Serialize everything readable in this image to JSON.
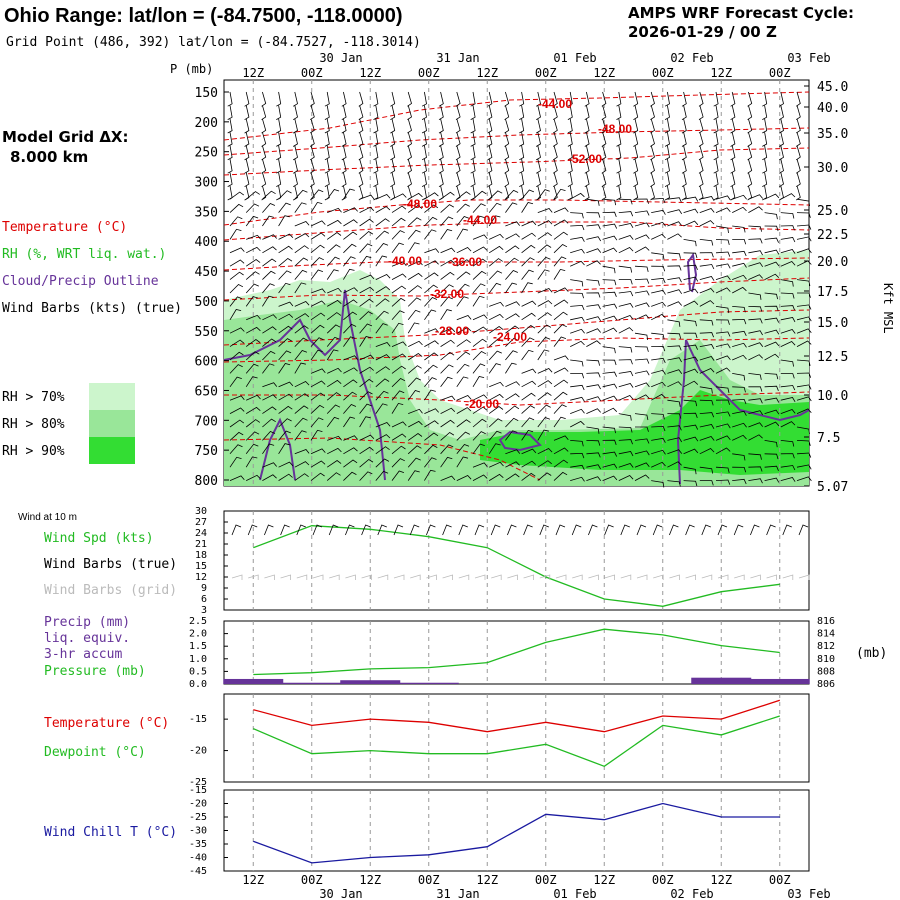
{
  "header": {
    "title": "Ohio Range:  lat/lon = (-84.7500, -118.0000)",
    "subtitle": "Grid Point (486, 392) lat/lon = (-84.7527, -118.3014)",
    "cycle_label": "AMPS WRF Forecast Cycle:",
    "cycle_value": "2026-01-29 / 00  Z"
  },
  "model_grid": {
    "label": "Model Grid ΔX:",
    "value": "8.000 km"
  },
  "left_legend": {
    "temperature": "Temperature (°C)",
    "rh": "RH (%, WRT liq. wat.)",
    "cloud": "Cloud/Precip Outline",
    "wind_barbs": "Wind Barbs (kts) (true)",
    "rh70": "RH > 70%",
    "rh80": "RH > 80%",
    "rh90": "RH > 90%"
  },
  "time_axis": {
    "top_hours": [
      "12Z",
      "00Z",
      "12Z",
      "00Z",
      "12Z",
      "00Z",
      "12Z",
      "00Z",
      "12Z",
      "00Z"
    ],
    "top_dates": [
      "30 Jan",
      "31 Jan",
      "01 Feb",
      "02 Feb",
      "03 Feb"
    ],
    "bottom_hours": [
      "12Z",
      "00Z",
      "12Z",
      "00Z",
      "12Z",
      "00Z",
      "12Z",
      "00Z",
      "12Z",
      "00Z"
    ],
    "bottom_dates": [
      "30 Jan",
      "31 Jan",
      "01 Feb",
      "02 Feb",
      "03 Feb"
    ]
  },
  "colors": {
    "red": "#dd0000",
    "green": "#22bb22",
    "purple": "#663399",
    "blue": "#1a1aa0",
    "rh70": "#ccf5cc",
    "rh80": "#99e699",
    "rh90": "#33dd33",
    "grid": "#999999"
  },
  "chart_data": [
    {
      "type": "heatmap",
      "name": "cross-section",
      "title": "Ohio Range:  lat/lon = (-84.7500, -118.0000)",
      "ylabel": "P (mb)",
      "ylim": [
        800,
        150
      ],
      "y_ticks": [
        "150",
        "200",
        "250",
        "300",
        "350",
        "400",
        "450",
        "500",
        "550",
        "600",
        "650",
        "700",
        "750",
        "800"
      ],
      "right_axis_label": "Kft MSL",
      "right_ticks": [
        "45.0",
        "40.0",
        "35.0",
        "30.0",
        "25.0",
        "22.5",
        "20.0",
        "17.5",
        "15.0",
        "12.5",
        "10.0",
        "7.5",
        "5.07"
      ],
      "temperature_labels": [
        "-44.00",
        "-48.00",
        "-52.00",
        "-48.00",
        "-44.00",
        "-40.00",
        "-36.00",
        "-32.00",
        "-28.00",
        "-24.00",
        "-20.00"
      ]
    },
    {
      "type": "line",
      "name": "wind-10m",
      "panel_label": "Wind at 10 m",
      "legend": [
        "Wind Spd (kts)",
        "Wind Barbs (true)",
        "Wind Barbs (grid)"
      ],
      "y_ticks": [
        "30",
        "27",
        "24",
        "21",
        "18",
        "15",
        "12",
        "9",
        "6",
        "3"
      ],
      "ylim": [
        3,
        30
      ],
      "x_hours": [
        0,
        12,
        24,
        36,
        48,
        60,
        72,
        84,
        96,
        108
      ],
      "series": [
        {
          "name": "Wind Spd (kts)",
          "values": [
            20,
            26,
            25,
            23,
            20,
            12,
            6,
            4,
            8,
            10
          ]
        }
      ]
    },
    {
      "type": "line",
      "name": "precip-pressure",
      "legend": [
        "Precip (mm)",
        "liq. equiv.",
        "3-hr accum",
        "Pressure (mb)"
      ],
      "y_ticks": [
        "2.5",
        "2.0",
        "1.5",
        "1.0",
        "0.5",
        "0.0"
      ],
      "right_ticks": [
        "816",
        "814",
        "812",
        "810",
        "808",
        "806"
      ],
      "right_unit": "(mb)",
      "ylim": [
        0,
        2.5
      ],
      "x_hours": [
        0,
        12,
        24,
        36,
        48,
        60,
        72,
        84,
        96,
        108
      ],
      "series": [
        {
          "name": "Pressure (mb)",
          "values": [
            807.5,
            807.8,
            808.4,
            808.6,
            809.4,
            812.6,
            814.7,
            813.8,
            812.1,
            811.0
          ]
        },
        {
          "name": "Precip (mm)",
          "values": [
            0.2,
            0.05,
            0.15,
            0.05,
            0.0,
            0.0,
            0.0,
            0.0,
            0.25,
            0.2
          ]
        }
      ]
    },
    {
      "type": "line",
      "name": "temperature-dewpoint",
      "legend": [
        "Temperature (°C)",
        "Dewpoint (°C)"
      ],
      "y_ticks": [
        "-15",
        "-20",
        "-25"
      ],
      "ylim": [
        -25,
        -11
      ],
      "x_hours": [
        0,
        12,
        24,
        36,
        48,
        60,
        72,
        84,
        96,
        108
      ],
      "series": [
        {
          "name": "Temperature (°C)",
          "values": [
            -13.5,
            -16,
            -15,
            -15.5,
            -17,
            -15.5,
            -17,
            -14.5,
            -15,
            -12
          ]
        },
        {
          "name": "Dewpoint (°C)",
          "values": [
            -16.5,
            -20.5,
            -20,
            -20.5,
            -20.5,
            -19,
            -22.5,
            -16,
            -17.5,
            -14.5
          ]
        }
      ]
    },
    {
      "type": "line",
      "name": "wind-chill",
      "legend": [
        "Wind Chill T (°C)"
      ],
      "y_ticks": [
        "-15",
        "-20",
        "-25",
        "-30",
        "-35",
        "-40",
        "-45"
      ],
      "ylim": [
        -45,
        -15
      ],
      "x_hours": [
        0,
        12,
        24,
        36,
        48,
        60,
        72,
        84,
        96,
        108
      ],
      "series": [
        {
          "name": "Wind Chill T (°C)",
          "values": [
            -34,
            -42,
            -40,
            -39,
            -36,
            -24,
            -26,
            -20,
            -25,
            -25
          ]
        }
      ]
    }
  ]
}
